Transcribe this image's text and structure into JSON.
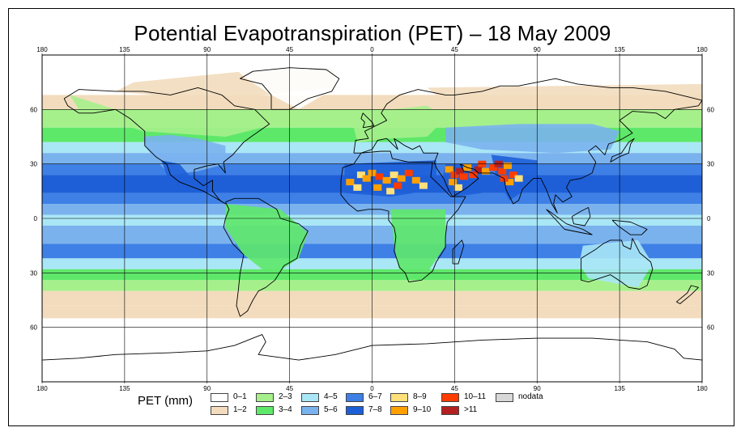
{
  "title": "Potential Evapotranspiration (PET) – 18 May 2009",
  "map": {
    "lon_ticks": [
      {
        "value": -180,
        "label": "180"
      },
      {
        "value": -135,
        "label": "135"
      },
      {
        "value": -90,
        "label": "90"
      },
      {
        "value": -45,
        "label": "45"
      },
      {
        "value": 0,
        "label": "0"
      },
      {
        "value": 45,
        "label": "45"
      },
      {
        "value": 90,
        "label": "90"
      },
      {
        "value": 135,
        "label": "135"
      },
      {
        "value": 180,
        "label": "180"
      }
    ],
    "lat_ticks": [
      {
        "value": 60,
        "label": "60"
      },
      {
        "value": 30,
        "label": "30"
      },
      {
        "value": 0,
        "label": "0"
      },
      {
        "value": -30,
        "label": "30"
      },
      {
        "value": -60,
        "label": "60"
      }
    ],
    "lon_range": [
      -180,
      180
    ],
    "lat_range": [
      -90,
      90
    ]
  },
  "legend": {
    "title": "PET (mm)",
    "items": [
      {
        "label": "0–1",
        "color": "#ffffff"
      },
      {
        "label": "1–2",
        "color": "#f2dcbd"
      },
      {
        "label": "2–3",
        "color": "#a6f08c"
      },
      {
        "label": "3–4",
        "color": "#5ee86a"
      },
      {
        "label": "4–5",
        "color": "#a9e6f6"
      },
      {
        "label": "5–6",
        "color": "#7ab2ee"
      },
      {
        "label": "6–7",
        "color": "#3e80e6"
      },
      {
        "label": "7–8",
        "color": "#1e5fd8"
      },
      {
        "label": "8–9",
        "color": "#ffe07a"
      },
      {
        "label": "9–10",
        "color": "#ffa000"
      },
      {
        "label": "10–11",
        "color": "#ff3c00"
      },
      {
        "label": ">11",
        "color": "#b42020"
      },
      {
        "label": "nodata",
        "color": "#d8d8d8"
      }
    ]
  }
}
